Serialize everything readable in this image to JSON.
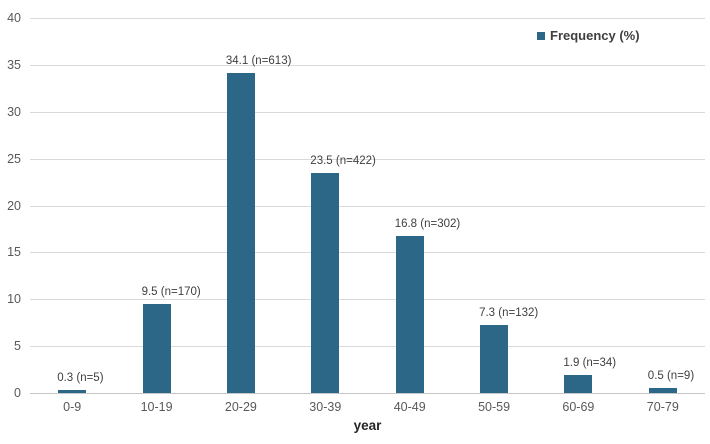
{
  "chart_data": {
    "type": "bar",
    "title": "",
    "xlabel": "year",
    "ylabel": "",
    "legend": {
      "label": "Frequency (%)",
      "position": "top-right"
    },
    "categories": [
      "0-9",
      "10-19",
      "20-29",
      "30-39",
      "40-49",
      "50-59",
      "60-69",
      "70-79"
    ],
    "values": [
      0.3,
      9.5,
      34.1,
      23.5,
      16.8,
      7.3,
      1.9,
      0.5
    ],
    "counts": [
      5,
      170,
      613,
      422,
      302,
      132,
      34,
      9
    ],
    "bar_labels": [
      "0.3 (n=5)",
      "9.5 (n=170)",
      "34.1 (n=613)",
      "23.5 (n=422)",
      "16.8 (n=302)",
      "7.3 (n=132)",
      "1.9 (n=34)",
      "0.5 (n=9)"
    ],
    "ylim": [
      0,
      40
    ],
    "yticks": [
      0,
      5,
      10,
      15,
      20,
      25,
      30,
      35,
      40
    ],
    "grid": true,
    "colors": {
      "bar": "#2C6787",
      "gridline": "#D9D9D9",
      "axis_line": "#C6C6C6",
      "tick_label": "#595959",
      "data_label": "#404040",
      "legend_text": "#3F3F3F",
      "xlabel_text": "#262626"
    }
  }
}
